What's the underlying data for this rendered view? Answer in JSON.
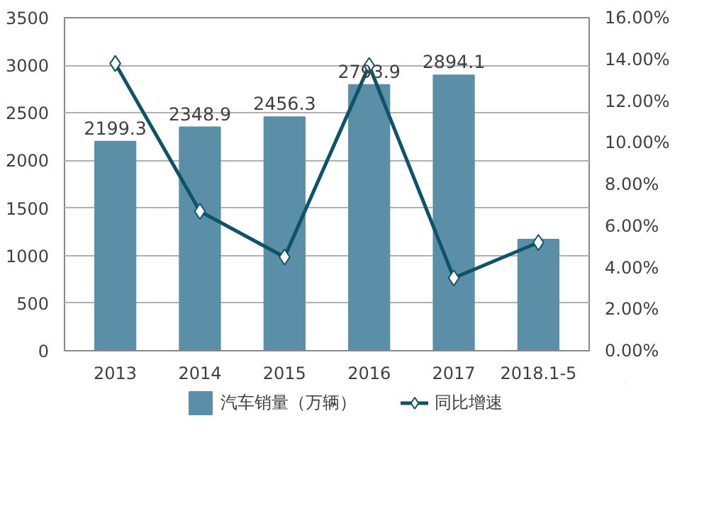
{
  "chart_data": {
    "type": "bar",
    "categories": [
      "2013",
      "2014",
      "2015",
      "2016",
      "2017",
      "2018.1-5"
    ],
    "series": [
      {
        "name": "汽车销量（万辆）",
        "color": "#5b8fa8",
        "values": [
          2199.3,
          2348.9,
          2456.3,
          2793.9,
          2894.1,
          1170
        ],
        "value_labels": [
          "2199.3",
          "2348.9",
          "2456.3",
          "2793.9",
          "2894.1",
          null
        ]
      },
      {
        "name": "同比增速",
        "type": "line",
        "axis": "y2",
        "color": "#0e5369",
        "marker": "diamond",
        "values": [
          13.8,
          6.7,
          4.5,
          13.7,
          3.5,
          5.2
        ]
      }
    ],
    "ylim": [
      0,
      3500
    ],
    "yticks": [
      0,
      500,
      1000,
      1500,
      2000,
      2500,
      3000,
      3500
    ],
    "y2lim": [
      0,
      16
    ],
    "y2ticks": [
      {
        "value": 0,
        "label": "0.00%"
      },
      {
        "value": 2,
        "label": "2.00%"
      },
      {
        "value": 4,
        "label": "4.00%"
      },
      {
        "value": 6,
        "label": "6.00%"
      },
      {
        "value": 8,
        "label": "8.00%"
      },
      {
        "value": 10,
        "label": "10.00%"
      },
      {
        "value": 12,
        "label": "12.00%"
      },
      {
        "value": 14,
        "label": "14.00%"
      },
      {
        "value": 16,
        "label": "16.00%"
      }
    ],
    "grid": "y",
    "legend": "bottom"
  }
}
